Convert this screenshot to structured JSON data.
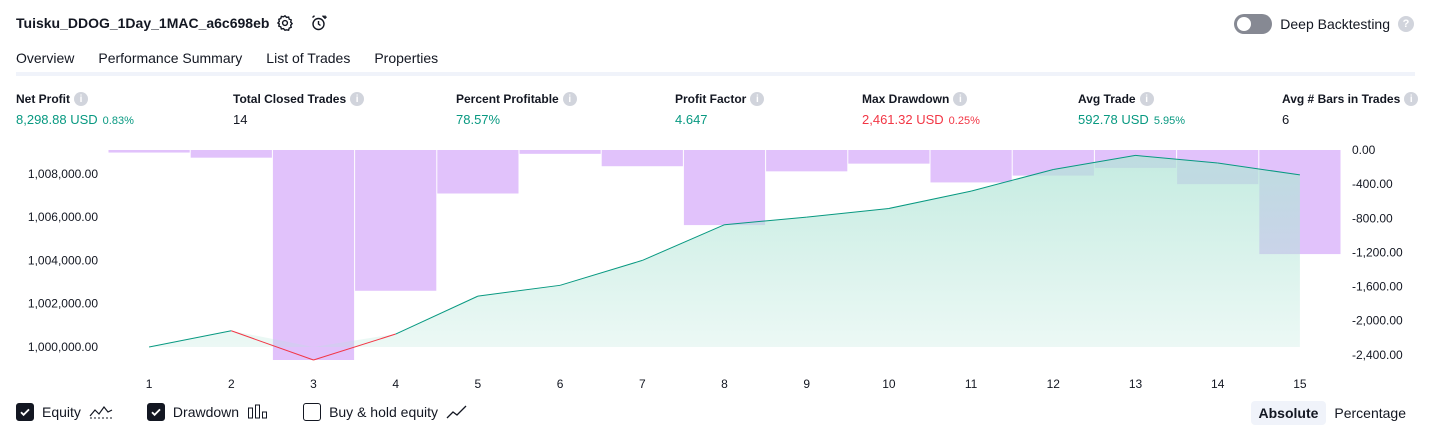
{
  "header": {
    "strategy_name": "Tuisku_DDOG_1Day_1MAC_a6c698eb",
    "settings_icon": "gear-icon",
    "alert_icon": "alarm-clock-plus-icon",
    "deep_backtesting_label": "Deep Backtesting",
    "deep_backtesting_enabled": false
  },
  "tabs": [
    {
      "label": "Overview",
      "active": true
    },
    {
      "label": "Performance Summary",
      "active": false
    },
    {
      "label": "List of Trades",
      "active": false
    },
    {
      "label": "Properties",
      "active": false
    }
  ],
  "metrics": {
    "net_profit": {
      "label": "Net Profit",
      "value": "8,298.88 USD",
      "pct": "0.83%"
    },
    "total_closed_trades": {
      "label": "Total Closed Trades",
      "value": "14"
    },
    "percent_profitable": {
      "label": "Percent Profitable",
      "value": "78.57%"
    },
    "profit_factor": {
      "label": "Profit Factor",
      "value": "4.647"
    },
    "max_drawdown": {
      "label": "Max Drawdown",
      "value": "2,461.32 USD",
      "pct": "0.25%"
    },
    "avg_trade": {
      "label": "Avg Trade",
      "value": "592.78 USD",
      "pct": "5.95%"
    },
    "avg_bars": {
      "label": "Avg # Bars in Trades",
      "value": "6"
    }
  },
  "chart_data": {
    "type": "area",
    "x": [
      1,
      2,
      3,
      4,
      5,
      6,
      7,
      8,
      9,
      10,
      11,
      12,
      13,
      14,
      15
    ],
    "x_tick_labels": [
      "1",
      "2",
      "3",
      "4",
      "5",
      "6",
      "7",
      "8",
      "9",
      "10",
      "11",
      "12",
      "13",
      "14",
      "15"
    ],
    "left_axis": {
      "ticks": [
        1000000,
        1002000,
        1004000,
        1006000,
        1008000
      ],
      "tick_labels": [
        "1,000,000.00",
        "1,002,000.00",
        "1,004,000.00",
        "1,006,000.00",
        "1,008,000.00"
      ],
      "range": [
        999400,
        1009100
      ]
    },
    "right_axis": {
      "ticks": [
        0,
        -400,
        -800,
        -1200,
        -1600,
        -2000,
        -2400
      ],
      "tick_labels": [
        "0.00",
        "-400.00",
        "-800.00",
        "-1,200.00",
        "-1,600.00",
        "-2,000.00",
        "-2,400.00"
      ],
      "range": [
        -2461.32,
        0
      ]
    },
    "series": [
      {
        "name": "Equity",
        "values": [
          1000000,
          1000750,
          999400,
          1000600,
          1002350,
          1002850,
          1004000,
          1005650,
          1006000,
          1006400,
          1007200,
          1008200,
          1008850,
          1008500,
          1007950
        ],
        "line_color": "#089981",
        "fill_color": "#b2e5d7"
      },
      {
        "name": "Drawdown",
        "values": [
          -30,
          -90,
          -2461.32,
          -1650,
          -510,
          -45,
          -190,
          -880,
          -250,
          -160,
          -380,
          -300,
          -210,
          -400,
          -1220
        ],
        "color": "#e1c2fb"
      }
    ],
    "below_initial_color": "#f23645",
    "grid": false
  },
  "legend": {
    "equity_label": "Equity",
    "equity_checked": true,
    "drawdown_label": "Drawdown",
    "drawdown_checked": true,
    "buy_hold_label": "Buy & hold equity",
    "buy_hold_checked": false
  },
  "mode": {
    "absolute_label": "Absolute",
    "percentage_label": "Percentage",
    "active": "Absolute"
  }
}
